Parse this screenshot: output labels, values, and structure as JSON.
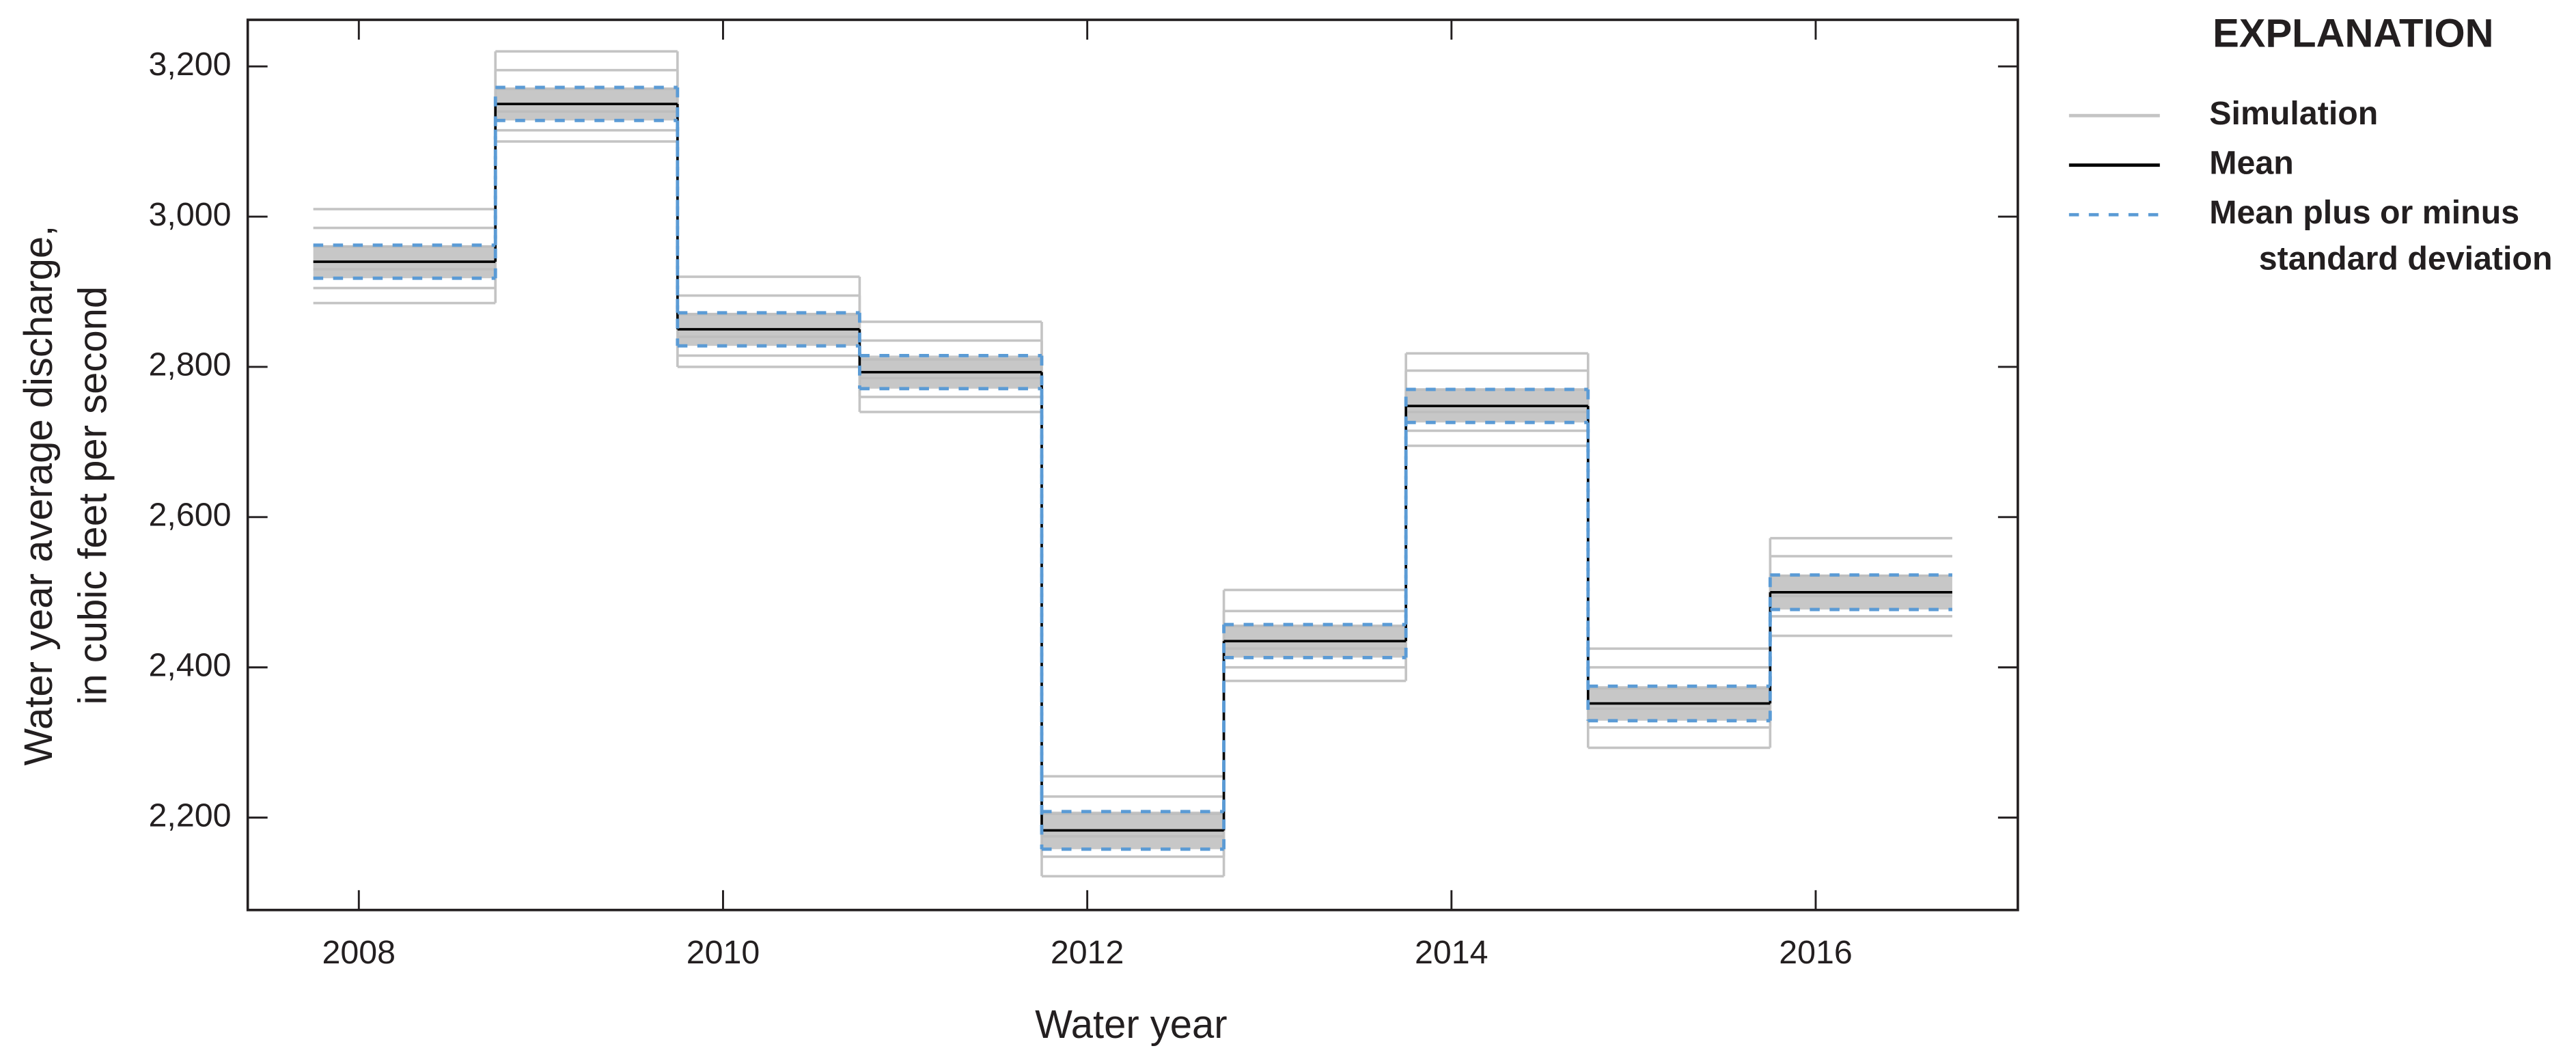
{
  "chart_data": {
    "type": "step",
    "ylabel": [
      "Water year average discharge,",
      "in cubic feet per second"
    ],
    "xlabel": "Water year",
    "legend_title": "EXPLANATION",
    "bins": [
      2007.75,
      2008.75,
      2009.75,
      2010.75,
      2011.75,
      2012.75,
      2013.75,
      2014.75,
      2015.75,
      2016.75
    ],
    "xlim": [
      2007.39,
      2017.11
    ],
    "xticks": [
      2008,
      2010,
      2012,
      2014,
      2016
    ],
    "ylim": [
      2077,
      3262
    ],
    "yticks": [
      {
        "value": 2200,
        "label": "2,200"
      },
      {
        "value": 2400,
        "label": "2,400"
      },
      {
        "value": 2600,
        "label": "2,600"
      },
      {
        "value": 2800,
        "label": "2,800"
      },
      {
        "value": 3000,
        "label": "3,000"
      },
      {
        "value": 3200,
        "label": "3,200"
      }
    ],
    "simulations": {
      "name": "Simulation",
      "color": "#c4c4c4",
      "runs": [
        [
          3010,
          3220,
          2920,
          2860,
          2255,
          2503,
          2818,
          2425,
          2572
        ],
        [
          2985,
          3195,
          2895,
          2835,
          2228,
          2475,
          2795,
          2400,
          2548
        ],
        [
          2960,
          3170,
          2870,
          2810,
          2205,
          2455,
          2770,
          2372,
          2522
        ],
        [
          2930,
          3140,
          2840,
          2785,
          2175,
          2425,
          2740,
          2345,
          2495
        ],
        [
          2905,
          3115,
          2815,
          2760,
          2148,
          2400,
          2715,
          2320,
          2468
        ],
        [
          2885,
          3100,
          2800,
          2740,
          2122,
          2382,
          2695,
          2293,
          2442
        ]
      ]
    },
    "mean": {
      "name": "Mean",
      "color": "#000000",
      "values": [
        2940,
        3150,
        2850,
        2793,
        2183,
        2435,
        2748,
        2352,
        2500
      ]
    },
    "sd": {
      "name": [
        "Mean plus or minus",
        "standard deviation"
      ],
      "color": "#5b9bd5",
      "band_color": "#bdbdbd",
      "values": [
        22,
        22,
        22,
        22,
        25,
        22,
        22,
        23,
        23
      ]
    }
  }
}
